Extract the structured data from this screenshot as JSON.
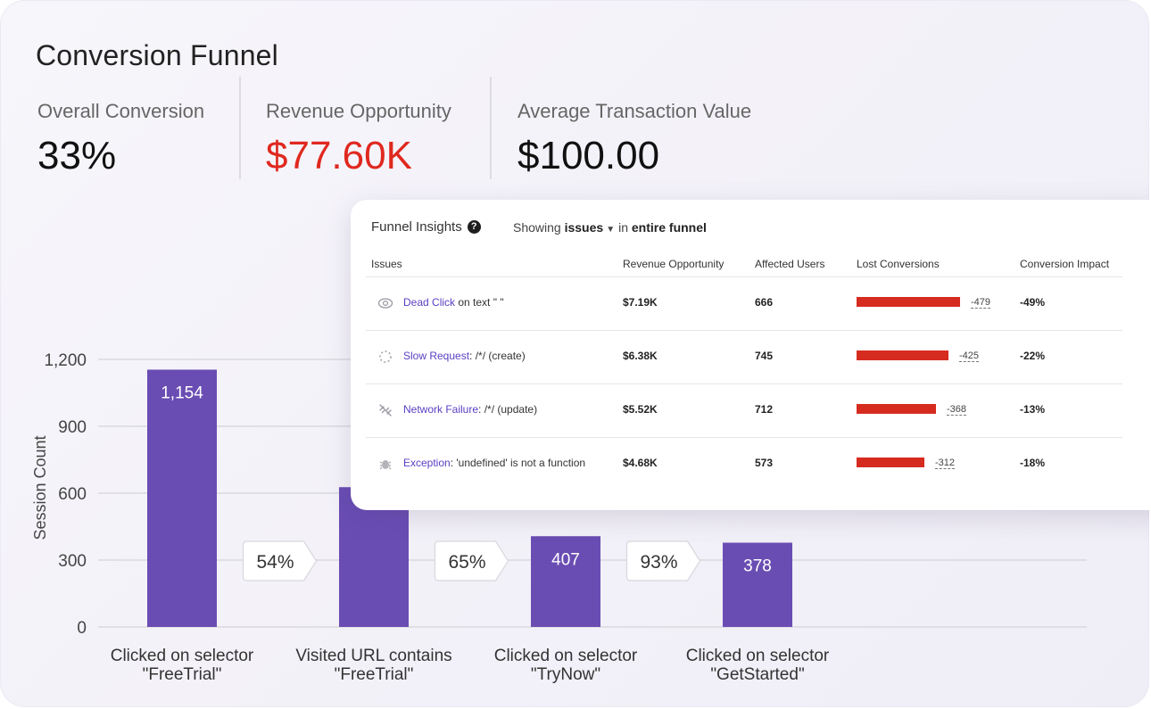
{
  "title": "Conversion Funnel",
  "metrics": [
    {
      "label": "Overall Conversion",
      "value": "33%"
    },
    {
      "label": "Revenue Opportunity",
      "value": "$77.60K",
      "color": "#e0281f"
    },
    {
      "label": "Average Transaction Value",
      "value": "$100.00"
    }
  ],
  "chart_data": {
    "type": "bar",
    "ylabel": "Session Count",
    "ylim": [
      0,
      1200
    ],
    "yticks": [
      "1,200",
      "900",
      "600",
      "300",
      "0"
    ],
    "ytick_values": [
      1200,
      900,
      600,
      300,
      0
    ],
    "categories": [
      [
        "Clicked on selector",
        "\"FreeTrial\""
      ],
      [
        "Visited URL contains",
        "\"FreeTrial\""
      ],
      [
        "Clicked on selector",
        "\"TryNow\""
      ],
      [
        "Clicked on selector",
        "\"GetStarted\""
      ]
    ],
    "values": [
      1154,
      627,
      407,
      378
    ],
    "value_labels": [
      "1,154",
      "",
      "407",
      "378"
    ],
    "conversion_rates": [
      "54%",
      "65%",
      "93%"
    ],
    "bar_color": "#6a4db3",
    "grid": true
  },
  "insights": {
    "title": "Funnel Insights",
    "showing_prefix": "Showing",
    "filter": "issues",
    "showing_in": "in",
    "scope": "entire funnel",
    "columns": [
      "Issues",
      "Revenue Opportunity",
      "Affected Users",
      "Lost Conversions",
      "Conversion Impact"
    ],
    "rows": [
      {
        "icon": "eye-icon",
        "type": "Dead Click",
        "detail": " on text \" \"",
        "revenue": "$7.19K",
        "users": "666",
        "lost": "-479",
        "lost_value": 479,
        "impact": "-49%"
      },
      {
        "icon": "spinner-icon",
        "type": "Slow Request",
        "detail": ": /*/ (create)",
        "revenue": "$6.38K",
        "users": "745",
        "lost": "-425",
        "lost_value": 425,
        "impact": "-22%"
      },
      {
        "icon": "broken-link-icon",
        "type": "Network Failure",
        "detail": ": /*/ (update)",
        "revenue": "$5.52K",
        "users": "712",
        "lost": "-368",
        "lost_value": 368,
        "impact": "-13%"
      },
      {
        "icon": "bug-icon",
        "type": "Exception",
        "detail": ": 'undefined' is not a function",
        "revenue": "$4.68K",
        "users": "573",
        "lost": "-312",
        "lost_value": 312,
        "impact": "-18%"
      }
    ],
    "bar_color": "#d62b1f"
  }
}
